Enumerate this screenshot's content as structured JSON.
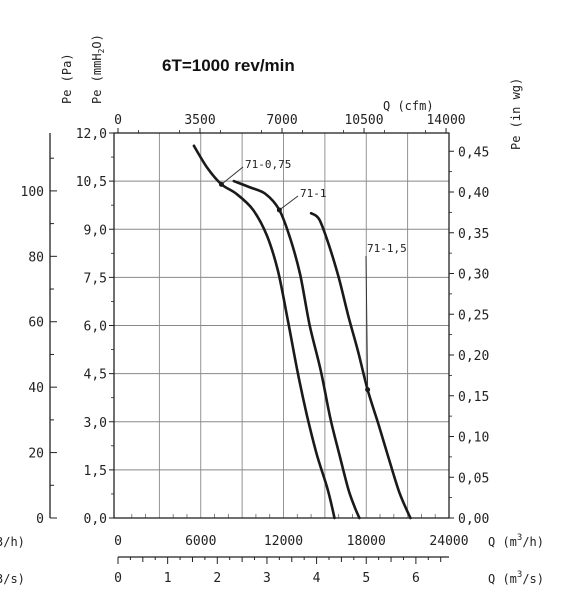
{
  "chart_data": {
    "type": "line",
    "title": "6T=1000 rev/min",
    "grid": true,
    "axes": {
      "left_pa": {
        "label": "Pe (Pa)",
        "ticks": [
          "0",
          "20",
          "40",
          "60",
          "80",
          "100"
        ],
        "range": [
          0,
          117.7
        ]
      },
      "left_mmh2o": {
        "label_prefix": "Pe (mmH",
        "label_sub": "2",
        "label_suffix": "O)",
        "ticks": [
          "0,0",
          "1,5",
          "3,0",
          "4,5",
          "6,0",
          "7,5",
          "9,0",
          "10,5",
          "12,0"
        ],
        "range": [
          0,
          12
        ]
      },
      "right_inwg": {
        "label": "Pe (in wg)",
        "ticks": [
          "0,00",
          "0,05",
          "0,10",
          "0,15",
          "0,20",
          "0,25",
          "0,30",
          "0,35",
          "0,40",
          "0,45"
        ],
        "range": [
          0,
          0.4724
        ]
      },
      "top_cfm": {
        "label": "Q (cfm)",
        "ticks": [
          "0",
          "3500",
          "7000",
          "10500",
          "14000"
        ],
        "range": [
          0,
          14126
        ]
      },
      "bottom_m3h": {
        "label_prefix": "Q (m",
        "label_sup": "3",
        "label_suffix": "/h)",
        "left_label_partial": "3/h)",
        "ticks": [
          "0",
          "6000",
          "12000",
          "18000",
          "24000"
        ],
        "range": [
          0,
          24000
        ]
      },
      "bottom_m3s": {
        "label_prefix": "Q (m",
        "label_sup": "3",
        "label_suffix": "/s)",
        "left_label_partial": "3/s)",
        "ticks": [
          "0",
          "1",
          "2",
          "3",
          "4",
          "5",
          "6"
        ],
        "range": [
          0,
          6.667
        ]
      }
    },
    "x_unit": "m3/h",
    "y_unit": "mmH2O",
    "series": [
      {
        "name": "71-0,75",
        "x": [
          5500,
          6500,
          7500,
          8600,
          9800,
          10800,
          11600,
          12300,
          13000,
          13700,
          14400,
          15200,
          15700
        ],
        "y": [
          11.6,
          10.9,
          10.4,
          10.1,
          9.6,
          8.8,
          7.7,
          6.2,
          4.6,
          3.2,
          2.0,
          0.9,
          0.0
        ]
      },
      {
        "name": "71-1",
        "x": [
          8400,
          9600,
          10700,
          11700,
          12500,
          13200,
          13900,
          14700,
          15400,
          16100,
          16700,
          17200,
          17500
        ],
        "y": [
          10.5,
          10.3,
          10.1,
          9.6,
          8.7,
          7.6,
          6.0,
          4.6,
          3.1,
          1.9,
          0.9,
          0.3,
          0.0
        ]
      },
      {
        "name": "71-1,5",
        "x": [
          14000,
          14600,
          15300,
          16000,
          16700,
          17400,
          18100,
          18900,
          19600,
          20400,
          21200
        ],
        "y": [
          9.5,
          9.3,
          8.5,
          7.5,
          6.3,
          5.2,
          4.0,
          2.9,
          1.9,
          0.8,
          0.0
        ]
      }
    ]
  }
}
